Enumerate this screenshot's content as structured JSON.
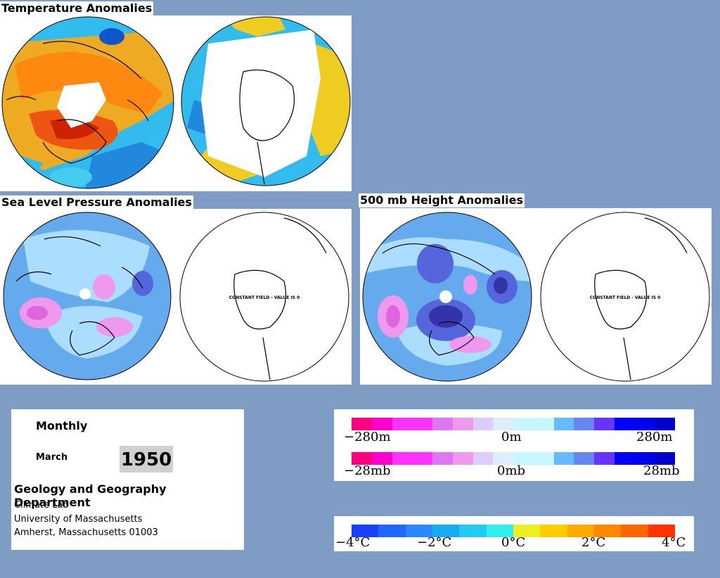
{
  "titles": {
    "temperature": "Temperature Anomalies",
    "slp": "Sea Level Pressure Anomalies",
    "height500": "500 mb Height Anomalies"
  },
  "constant_field_label": "CONSTANT FIELD - VALUE IS 0",
  "info": {
    "period": "Monthly",
    "month": "March",
    "year": "1950",
    "department": "Geology and Geography Department",
    "lab": "Climate Lab",
    "university": "University of Massachusetts",
    "address": "Amherst, Massachusetts 01003"
  },
  "legend_height": {
    "min": "−280m",
    "mid": "0m",
    "max": "280m",
    "colors": [
      "#ff0080",
      "#ff00cc",
      "#ff33ff",
      "#ff33ff",
      "#dd77ee",
      "#ee99ee",
      "#ddccff",
      "#ddeeff",
      "#c8f6ff",
      "#c8f6ff",
      "#66bbff",
      "#6688ee",
      "#6633ff",
      "#0000ff",
      "#0000ee",
      "#0000cc"
    ]
  },
  "legend_pressure": {
    "min": "−28mb",
    "mid": "0mb",
    "max": "28mb",
    "colors": [
      "#ff0080",
      "#ff00cc",
      "#ff33ff",
      "#ff33ff",
      "#dd77ee",
      "#ee99ee",
      "#ddccff",
      "#ddeeff",
      "#c8f6ff",
      "#c8f6ff",
      "#66bbff",
      "#6688ee",
      "#6633ff",
      "#0000ff",
      "#0000ee",
      "#0000cc"
    ]
  },
  "legend_temperature": {
    "labels": [
      "−4°C",
      "−2°C",
      "0°C",
      "2°C",
      "4°C"
    ],
    "colors": [
      "#1a40ff",
      "#2266ff",
      "#2a88ff",
      "#1aaaee",
      "#22ccee",
      "#33eeee",
      "#eeee22",
      "#ffcc00",
      "#ffaa00",
      "#ff8800",
      "#ff6600",
      "#ff3300"
    ]
  }
}
